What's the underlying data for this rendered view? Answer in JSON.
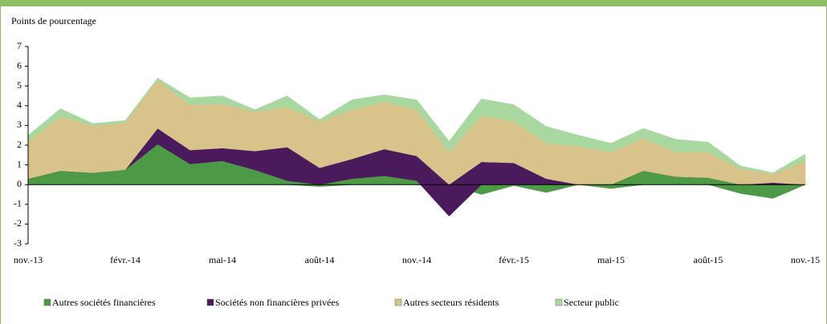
{
  "chart_data": {
    "type": "stacked_area",
    "y_axis_label": "Points de pourcentage",
    "categories": [
      "nov.-13",
      null,
      null,
      "févr.-14",
      null,
      null,
      "mai-14",
      null,
      null,
      "août-14",
      null,
      null,
      "nov.-14",
      null,
      null,
      "févr.-15",
      null,
      null,
      "mai-15",
      null,
      null,
      "août-15",
      null,
      null,
      "nov.-15"
    ],
    "ylim": [
      -3,
      7
    ],
    "yticks": [
      -3,
      -2,
      -1,
      0,
      1,
      2,
      3,
      4,
      5,
      6,
      7
    ],
    "legend": "bottom",
    "series": [
      {
        "name": "Autres sociétés financières",
        "color": "#4c9a45",
        "values": [
          0.3,
          0.7,
          0.6,
          0.75,
          2.05,
          1.05,
          1.2,
          0.75,
          0.2,
          -0.1,
          0.3,
          0.45,
          0.2,
          0,
          -0.5,
          -0.05,
          -0.4,
          0,
          -0.2,
          0.7,
          0.4,
          0.35,
          -0.45,
          -0.7,
          0
        ]
      },
      {
        "name": "Sociétés non financières privées",
        "color": "#4a1a5c",
        "values": [
          0,
          0,
          0,
          0,
          0.8,
          0.7,
          0.65,
          0.95,
          1.7,
          0.85,
          1.0,
          1.35,
          1.25,
          -1.6,
          1.15,
          1.1,
          0.3,
          0,
          0,
          0,
          0,
          0,
          0,
          0.1,
          0
        ]
      },
      {
        "name": "Autres secteurs résidents",
        "color": "#d8c38b",
        "values": [
          1.9,
          2.75,
          2.4,
          2.4,
          2.45,
          2.3,
          2.25,
          2.0,
          2.05,
          2.35,
          2.5,
          2.4,
          2.35,
          1.65,
          2.35,
          2.1,
          1.8,
          1.95,
          1.65,
          1.65,
          1.25,
          1.3,
          0.8,
          0.45,
          1.2
        ]
      },
      {
        "name": "Secteur public",
        "color": "#a8d8a0",
        "values": [
          0.3,
          0.4,
          0.1,
          0.1,
          0.1,
          0.35,
          0.4,
          0.1,
          0.55,
          0.1,
          0.5,
          0.35,
          0.5,
          0.55,
          0.85,
          0.85,
          0.85,
          0.55,
          0.45,
          0.5,
          0.65,
          0.5,
          0.15,
          0.05,
          0.35
        ]
      }
    ]
  }
}
